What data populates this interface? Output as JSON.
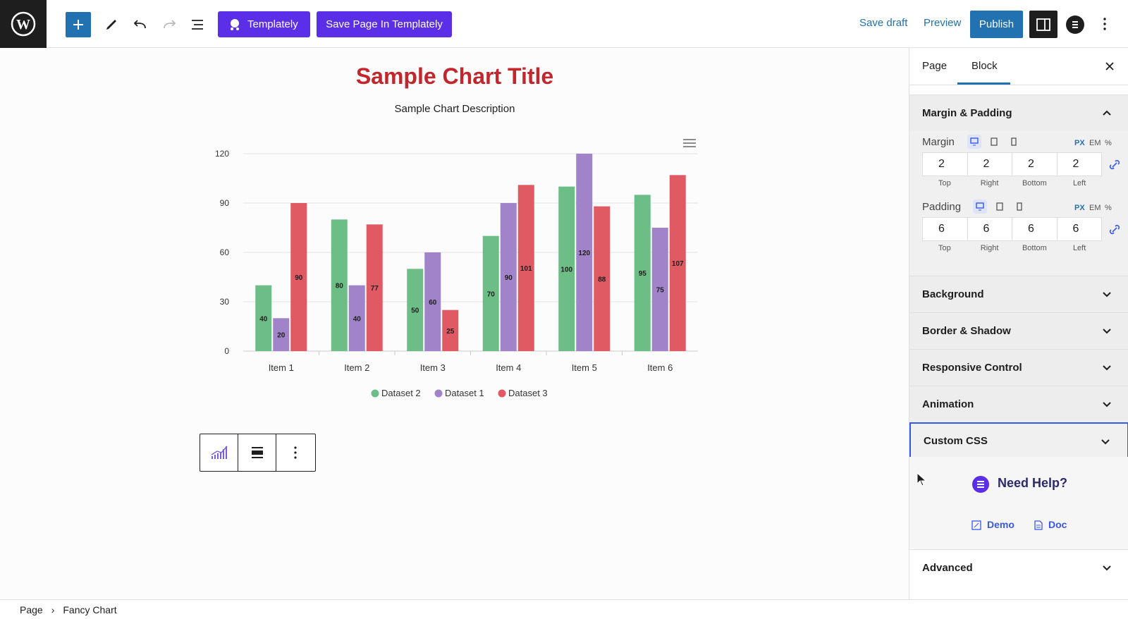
{
  "toolbar": {
    "templately_label": "Templately",
    "save_tpl_label": "Save Page In Templately",
    "save_draft": "Save draft",
    "preview": "Preview",
    "publish": "Publish"
  },
  "canvas": {
    "title": "Sample Chart Title",
    "description": "Sample Chart Description"
  },
  "chart_data": {
    "type": "bar",
    "title": "Sample Chart Title",
    "subtitle": "Sample Chart Description",
    "categories": [
      "Item 1",
      "Item 2",
      "Item 3",
      "Item 4",
      "Item 5",
      "Item 6"
    ],
    "series": [
      {
        "name": "Dataset 2",
        "color": "#6dbd86",
        "values": [
          40,
          80,
          50,
          70,
          100,
          95
        ]
      },
      {
        "name": "Dataset 1",
        "color": "#a083c8",
        "values": [
          20,
          40,
          60,
          90,
          120,
          75
        ]
      },
      {
        "name": "Dataset 3",
        "color": "#e05a63",
        "values": [
          90,
          77,
          25,
          101,
          88,
          107
        ]
      }
    ],
    "ylim": [
      0,
      120
    ],
    "yticks": [
      0,
      30,
      60,
      90,
      120
    ],
    "legend": "bottom",
    "grid": true
  },
  "sidebar": {
    "tab_page": "Page",
    "tab_block": "Block",
    "margin_padding": "Margin & Padding",
    "margin_label": "Margin",
    "padding_label": "Padding",
    "units": [
      "PX",
      "EM",
      "%"
    ],
    "margin_values": [
      "2",
      "2",
      "2",
      "2"
    ],
    "padding_values": [
      "6",
      "6",
      "6",
      "6"
    ],
    "captions": [
      "Top",
      "Right",
      "Bottom",
      "Left"
    ],
    "sections": [
      "Background",
      "Border & Shadow",
      "Responsive Control",
      "Animation",
      "Custom CSS"
    ],
    "help_title": "Need Help?",
    "demo": "Demo",
    "doc": "Doc",
    "advanced": "Advanced"
  },
  "breadcrumb": {
    "root": "Page",
    "current": "Fancy Chart"
  }
}
